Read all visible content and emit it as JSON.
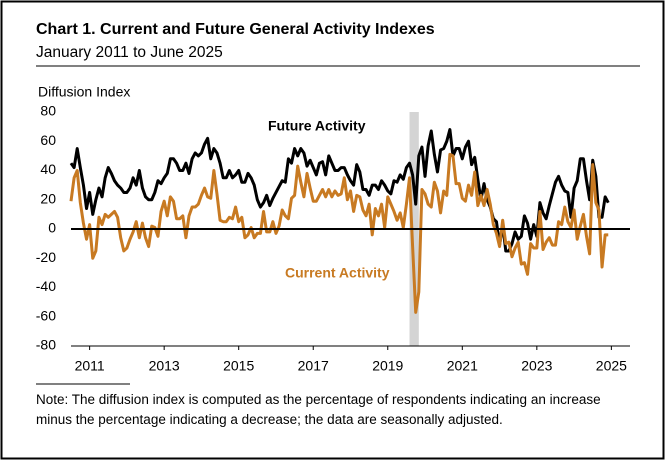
{
  "chart_data": {
    "type": "line",
    "title": "Chart 1. Current and Future General Activity Indexes",
    "subtitle": "January 2011 to June 2025",
    "y_label": "Diffusion Index",
    "note": "Note: The diffusion index is computed as the percentage of respondents indicating an increase minus the percentage indicating a decrease; the data are seasonally adjusted.",
    "x": [
      "2011-01",
      "2011-02",
      "2011-03",
      "2011-04",
      "2011-05",
      "2011-06",
      "2011-07",
      "2011-08",
      "2011-09",
      "2011-10",
      "2011-11",
      "2011-12",
      "2012-01",
      "2012-02",
      "2012-03",
      "2012-04",
      "2012-05",
      "2012-06",
      "2012-07",
      "2012-08",
      "2012-09",
      "2012-10",
      "2012-11",
      "2012-12",
      "2013-01",
      "2013-02",
      "2013-03",
      "2013-04",
      "2013-05",
      "2013-06",
      "2013-07",
      "2013-08",
      "2013-09",
      "2013-10",
      "2013-11",
      "2013-12",
      "2014-01",
      "2014-02",
      "2014-03",
      "2014-04",
      "2014-05",
      "2014-06",
      "2014-07",
      "2014-08",
      "2014-09",
      "2014-10",
      "2014-11",
      "2014-12",
      "2015-01",
      "2015-02",
      "2015-03",
      "2015-04",
      "2015-05",
      "2015-06",
      "2015-07",
      "2015-08",
      "2015-09",
      "2015-10",
      "2015-11",
      "2015-12",
      "2016-01",
      "2016-02",
      "2016-03",
      "2016-04",
      "2016-05",
      "2016-06",
      "2016-07",
      "2016-08",
      "2016-09",
      "2016-10",
      "2016-11",
      "2016-12",
      "2017-01",
      "2017-02",
      "2017-03",
      "2017-04",
      "2017-05",
      "2017-06",
      "2017-07",
      "2017-08",
      "2017-09",
      "2017-10",
      "2017-11",
      "2017-12",
      "2018-01",
      "2018-02",
      "2018-03",
      "2018-04",
      "2018-05",
      "2018-06",
      "2018-07",
      "2018-08",
      "2018-09",
      "2018-10",
      "2018-11",
      "2018-12",
      "2019-01",
      "2019-02",
      "2019-03",
      "2019-04",
      "2019-05",
      "2019-06",
      "2019-07",
      "2019-08",
      "2019-09",
      "2019-10",
      "2019-11",
      "2019-12",
      "2020-01",
      "2020-02",
      "2020-03",
      "2020-04",
      "2020-05",
      "2020-06",
      "2020-07",
      "2020-08",
      "2020-09",
      "2020-10",
      "2020-11",
      "2020-12",
      "2021-01",
      "2021-02",
      "2021-03",
      "2021-04",
      "2021-05",
      "2021-06",
      "2021-07",
      "2021-08",
      "2021-09",
      "2021-10",
      "2021-11",
      "2021-12",
      "2022-01",
      "2022-02",
      "2022-03",
      "2022-04",
      "2022-05",
      "2022-06",
      "2022-07",
      "2022-08",
      "2022-09",
      "2022-10",
      "2022-11",
      "2022-12",
      "2023-01",
      "2023-02",
      "2023-03",
      "2023-04",
      "2023-05",
      "2023-06",
      "2023-07",
      "2023-08",
      "2023-09",
      "2023-10",
      "2023-11",
      "2023-12",
      "2024-01",
      "2024-02",
      "2024-03",
      "2024-04",
      "2024-05",
      "2024-06",
      "2024-07",
      "2024-08",
      "2024-09",
      "2024-10",
      "2024-11",
      "2024-12",
      "2025-01",
      "2025-02",
      "2025-03",
      "2025-04",
      "2025-05",
      "2025-06"
    ],
    "series": [
      {
        "name": "Future Activity",
        "color": "#000000",
        "values": [
          45,
          42,
          55,
          42,
          30,
          14,
          25,
          10,
          20,
          28,
          22,
          35,
          42,
          38,
          33,
          30,
          28,
          25,
          25,
          28,
          35,
          30,
          40,
          28,
          22,
          20,
          20,
          25,
          33,
          31,
          35,
          38,
          48,
          48,
          45,
          40,
          40,
          45,
          38,
          48,
          52,
          50,
          52,
          58,
          62,
          48,
          55,
          52,
          45,
          35,
          35,
          40,
          35,
          37,
          40,
          32,
          32,
          38,
          35,
          30,
          20,
          15,
          18,
          23,
          16,
          21,
          25,
          29,
          33,
          32,
          48,
          45,
          55,
          50,
          55,
          52,
          43,
          47,
          42,
          37,
          45,
          46,
          37,
          50,
          45,
          40,
          40,
          42,
          42,
          37,
          33,
          30,
          44,
          39,
          27,
          27,
          23,
          30,
          30,
          27,
          33,
          30,
          26,
          24,
          33,
          32,
          37,
          34,
          42,
          45,
          37,
          17,
          50,
          56,
          36,
          57,
          67,
          51,
          39,
          54,
          55,
          60,
          68,
          50,
          55,
          55,
          48,
          56,
          60,
          44,
          49,
          34,
          20,
          31,
          20,
          15,
          7,
          5,
          -11,
          3,
          -15,
          -15,
          -10,
          -2,
          -7,
          -5,
          9,
          4,
          -7,
          3,
          -5,
          18,
          11,
          7,
          16,
          24,
          32,
          36,
          30,
          26,
          25,
          8,
          28,
          33,
          48,
          48,
          33,
          20,
          47,
          36,
          8,
          8,
          22,
          18
        ]
      },
      {
        "name": "Current Activity",
        "color": "#c87a22",
        "values": [
          19,
          35,
          40,
          18,
          4,
          -7,
          3,
          -20,
          -15,
          8,
          3,
          10,
          8,
          10,
          12,
          8,
          -6,
          -15,
          -13,
          -7,
          -2,
          5,
          -6,
          4,
          -6,
          -12,
          2,
          1,
          -5,
          12,
          19,
          9,
          22,
          19,
          7,
          7,
          9,
          -6,
          9,
          15,
          15,
          17,
          23,
          28,
          22,
          21,
          40,
          24,
          6,
          5,
          5,
          8,
          7,
          15,
          5,
          8,
          -6,
          -4,
          1,
          -6,
          -3,
          -3,
          12,
          -2,
          -2,
          5,
          -3,
          2,
          13,
          9,
          7,
          21,
          23,
          43,
          32,
          22,
          38,
          28,
          19,
          19,
          23,
          27,
          22,
          27,
          22,
          26,
          23,
          24,
          35,
          20,
          26,
          12,
          23,
          22,
          13,
          9,
          17,
          -4,
          14,
          9,
          17,
          1,
          22,
          17,
          12,
          6,
          11,
          1,
          17,
          35,
          -12,
          -57,
          -43,
          27,
          24,
          17,
          15,
          32,
          26,
          11,
          26,
          23,
          51,
          50,
          31,
          31,
          21,
          19,
          30,
          23,
          39,
          16,
          23,
          16,
          27,
          17,
          3,
          -3,
          -12,
          6,
          -10,
          -9,
          -19,
          -13,
          -9,
          -24,
          -23,
          -31,
          -10,
          -13,
          -13,
          12,
          -14,
          -9,
          -6,
          -11,
          -11,
          5,
          3,
          15,
          5,
          1,
          13,
          -7,
          2,
          10,
          -5,
          -17,
          44,
          18,
          13,
          -26,
          -4,
          -4
        ]
      }
    ],
    "shaded_periods": [
      [
        "2020-02",
        "2020-04"
      ]
    ],
    "xlim": [
      "2011-01",
      "2026-01"
    ],
    "xticks": [
      {
        "value": "2011-07",
        "label": "2011"
      },
      {
        "value": "2013-07",
        "label": "2013"
      },
      {
        "value": "2015-07",
        "label": "2015"
      },
      {
        "value": "2017-07",
        "label": "2017"
      },
      {
        "value": "2019-07",
        "label": "2019"
      },
      {
        "value": "2021-07",
        "label": "2021"
      },
      {
        "value": "2023-07",
        "label": "2023"
      },
      {
        "value": "2025-07",
        "label": "2025"
      }
    ],
    "ylim": [
      -80,
      80
    ],
    "yticks": [
      -80,
      -60,
      -40,
      -20,
      0,
      20,
      40,
      60,
      80
    ],
    "grid": false
  }
}
